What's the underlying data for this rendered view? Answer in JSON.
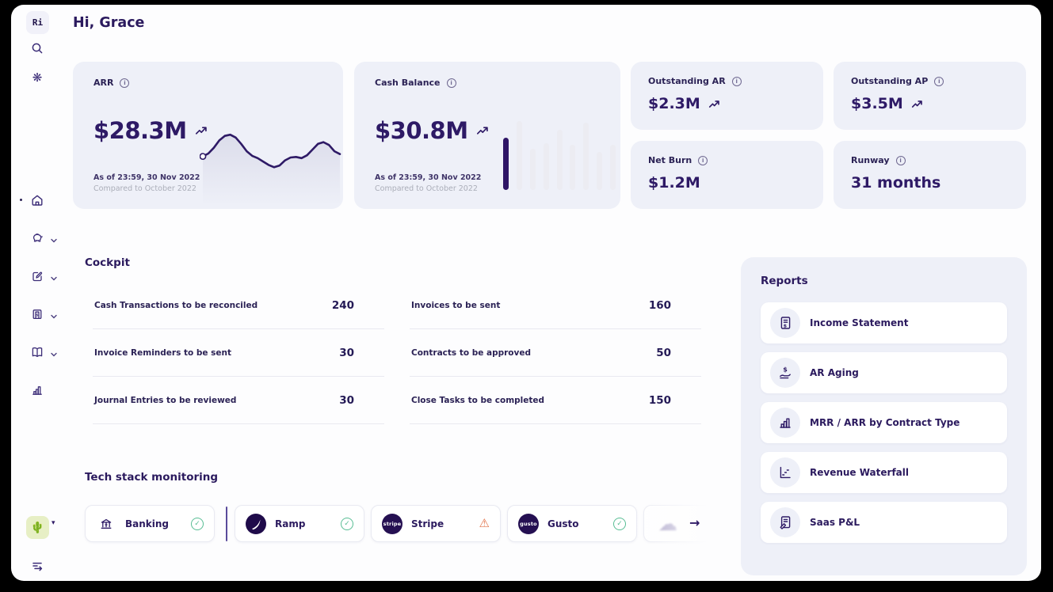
{
  "app": {
    "greeting": "Hi, Grace",
    "logo_text": "Ri",
    "workspace_emoji": "🌵"
  },
  "colors": {
    "accent": "#2e1a66",
    "card_bg": "#eef0f8",
    "success": "#58bd94",
    "warning": "#e2744b"
  },
  "kpis": {
    "arr": {
      "label": "ARR",
      "value": "$28.3M",
      "trend": "up",
      "as_of": "As of 23:59, 30 Nov 2022",
      "compared_to": "Compared to October 2022"
    },
    "cash_balance": {
      "label": "Cash Balance",
      "value": "$30.8M",
      "trend": "up",
      "as_of": "As of 23:59, 30 Nov 2022",
      "compared_to": "Compared to October 2022"
    },
    "outstanding_ar": {
      "label": "Outstanding AR",
      "value": "$2.3M",
      "trend": "up"
    },
    "outstanding_ap": {
      "label": "Outstanding AP",
      "value": "$3.5M",
      "trend": "up"
    },
    "net_burn": {
      "label": "Net Burn",
      "value": "$1.2M"
    },
    "runway": {
      "label": "Runway",
      "value": "31 months"
    }
  },
  "charts": {
    "arr_sparkline": {
      "type": "line",
      "points": [
        [
          0,
          55
        ],
        [
          4,
          50
        ],
        [
          8,
          40
        ],
        [
          12,
          27
        ],
        [
          16,
          19
        ],
        [
          20,
          17
        ],
        [
          24,
          22
        ],
        [
          28,
          33
        ],
        [
          32,
          46
        ],
        [
          36,
          54
        ],
        [
          40,
          58
        ],
        [
          44,
          64
        ],
        [
          48,
          70
        ],
        [
          52,
          74
        ],
        [
          56,
          71
        ],
        [
          60,
          62
        ],
        [
          64,
          57
        ],
        [
          68,
          56
        ],
        [
          72,
          58
        ],
        [
          76,
          53
        ],
        [
          80,
          43
        ],
        [
          84,
          33
        ],
        [
          88,
          30
        ],
        [
          92,
          35
        ],
        [
          96,
          46
        ],
        [
          100,
          51
        ]
      ]
    },
    "cash_bars": {
      "type": "bar",
      "values": [
        66,
        87,
        52,
        59,
        76,
        57,
        85,
        48,
        57
      ],
      "highlight_index": 0
    }
  },
  "cockpit": {
    "title": "Cockpit",
    "items": [
      {
        "label": "Cash Transactions to be reconciled",
        "count": "240"
      },
      {
        "label": "Invoices to be sent",
        "count": "160"
      },
      {
        "label": "Invoice Reminders to be sent",
        "count": "30"
      },
      {
        "label": "Contracts to be approved",
        "count": "50"
      },
      {
        "label": "Journal Entries to be reviewed",
        "count": "30"
      },
      {
        "label": "Close Tasks to be completed",
        "count": "150"
      }
    ]
  },
  "tech_stack": {
    "title": "Tech stack monitoring",
    "items": [
      {
        "name": "Banking",
        "status": "ok"
      },
      {
        "name": "Ramp",
        "status": "ok"
      },
      {
        "name": "Stripe",
        "status": "warning"
      },
      {
        "name": "Gusto",
        "status": "ok"
      },
      {
        "name": "",
        "status": ""
      }
    ],
    "logo_texts": {
      "stripe": "stripe",
      "gusto": "gusto"
    }
  },
  "reports": {
    "title": "Reports",
    "items": [
      {
        "label": "Income Statement"
      },
      {
        "label": "AR Aging"
      },
      {
        "label": "MRR / ARR by Contract Type"
      },
      {
        "label": "Revenue Waterfall"
      },
      {
        "label": "Saas P&L"
      }
    ]
  }
}
